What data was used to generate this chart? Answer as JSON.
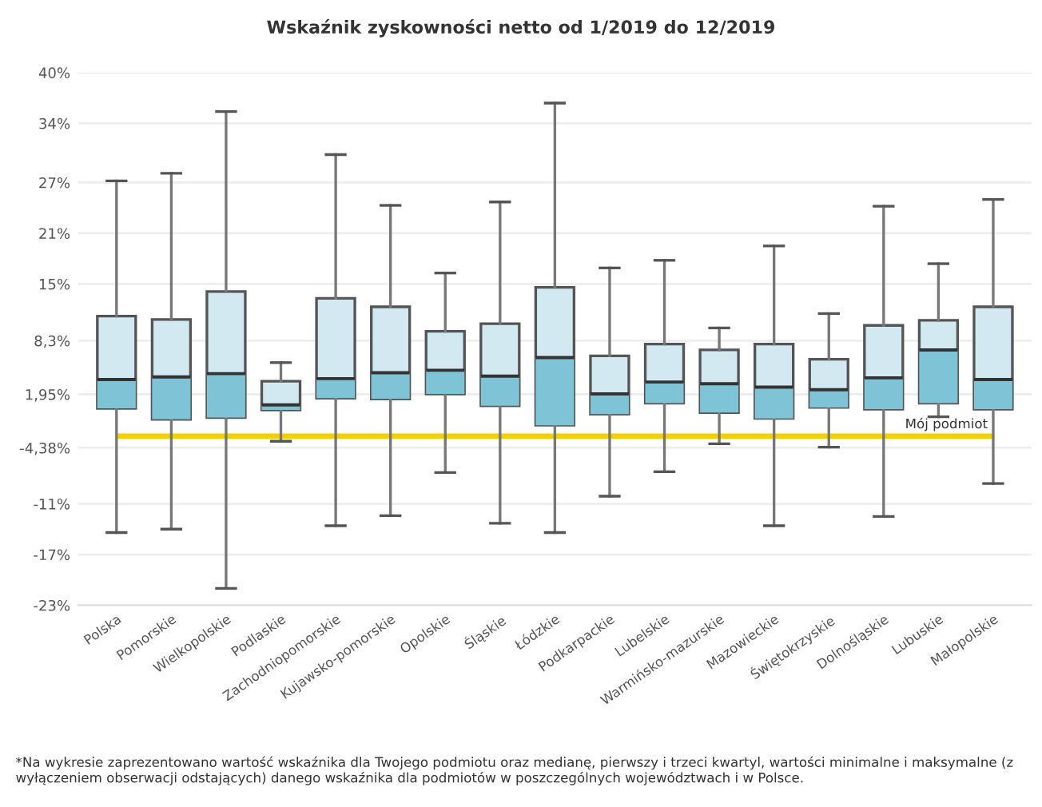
{
  "chart_data": {
    "type": "box",
    "title": "Wskaźnik zyskowności netto od 1/2019 do 12/2019",
    "categories": [
      "Polska",
      "Pomorskie",
      "Wielkopolskie",
      "Podlaskie",
      "Zachodniopomorskie",
      "Kujawsko-pomorskie",
      "Opolskie",
      "Śląskie",
      "Łódzkie",
      "Podkarpackie",
      "Lubelskie",
      "Warmińsko-mazurskie",
      "Mazowieckie",
      "Świętokrzyskie",
      "Dolnośląskie",
      "Lubuskie",
      "Małopolskie"
    ],
    "color": "#d2e9f1",
    "colors": [
      "#7fc3d7",
      "#7fc3d7",
      "#7fc3d7",
      "#7fc3d7",
      "#7fc3d7",
      "#7fc3d7",
      "#7fc3d7",
      "#7fc3d7",
      "#7fc3d7",
      "#7fc3d7",
      "#7fc3d7",
      "#7fc3d7",
      "#7fc3d7",
      "#7fc3d7",
      "#7fc3d7",
      "#7fc3d7",
      "#7fc3d7"
    ],
    "boxes": [
      {
        "low": -14.4,
        "q1": 0.3,
        "median": 3.7,
        "q3": 11.2,
        "high": 27.2
      },
      {
        "low": -14.0,
        "q1": -1.0,
        "median": 4.0,
        "q3": 10.8,
        "high": 28.1
      },
      {
        "low": -21.0,
        "q1": -0.8,
        "median": 4.4,
        "q3": 14.1,
        "high": 35.4
      },
      {
        "low": -3.6,
        "q1": 0.1,
        "median": 0.7,
        "q3": 3.5,
        "high": 5.7
      },
      {
        "low": -13.6,
        "q1": 1.5,
        "median": 3.8,
        "q3": 13.3,
        "high": 30.3
      },
      {
        "low": -12.4,
        "q1": 1.4,
        "median": 4.5,
        "q3": 12.3,
        "high": 24.3
      },
      {
        "low": -7.3,
        "q1": 2.0,
        "median": 4.8,
        "q3": 9.4,
        "high": 16.3
      },
      {
        "low": -13.3,
        "q1": 0.6,
        "median": 4.1,
        "q3": 10.3,
        "high": 24.7
      },
      {
        "low": -14.4,
        "q1": -1.7,
        "median": 6.3,
        "q3": 14.6,
        "high": 36.4
      },
      {
        "low": -10.1,
        "q1": -0.4,
        "median": 2.0,
        "q3": 6.5,
        "high": 16.9
      },
      {
        "low": -7.2,
        "q1": 0.9,
        "median": 3.4,
        "q3": 7.9,
        "high": 17.8
      },
      {
        "low": -3.9,
        "q1": -0.2,
        "median": 3.2,
        "q3": 7.2,
        "high": 9.8
      },
      {
        "low": -13.6,
        "q1": -0.9,
        "median": 2.8,
        "q3": 7.9,
        "high": 19.5
      },
      {
        "low": -4.3,
        "q1": 0.4,
        "median": 2.5,
        "q3": 6.1,
        "high": 11.5
      },
      {
        "low": -12.5,
        "q1": 0.2,
        "median": 3.9,
        "q3": 10.1,
        "high": 24.2
      },
      {
        "low": -0.7,
        "q1": 0.9,
        "median": 7.2,
        "q3": 10.7,
        "high": 17.4
      },
      {
        "low": -8.6,
        "q1": 0.2,
        "median": 3.7,
        "q3": 12.3,
        "high": 25.0
      }
    ],
    "ylim": [
      -23,
      40
    ],
    "yticks": [
      {
        "value": -23,
        "label": "-23%"
      },
      {
        "value": -17,
        "label": "-17%"
      },
      {
        "value": -11,
        "label": "-11%"
      },
      {
        "value": -4.38,
        "label": "-4,38%"
      },
      {
        "value": 1.95,
        "label": "1,95%"
      },
      {
        "value": 8.3,
        "label": "8,3%"
      },
      {
        "value": 15,
        "label": "15%"
      },
      {
        "value": 21,
        "label": "21%"
      },
      {
        "value": 27,
        "label": "27%"
      },
      {
        "value": 34,
        "label": "34%"
      },
      {
        "value": 40,
        "label": "40%"
      }
    ],
    "ref_lines": [
      {
        "axis": "y",
        "value": -3.0,
        "label": "Mój podmiot",
        "color": "#f5d000"
      }
    ],
    "grid": "y",
    "annotations": [
      "*Na wykresie zaprezentowano wartość wskaźnika dla Twojego podmiotu oraz medianę, pierwszy i trzeci kwartyl, wartości minimalne i maksymalne (z wyłączeniem obserwacji odstających) danego wskaźnika dla podmiotów w poszczególnych województwach i w Polsce."
    ]
  }
}
